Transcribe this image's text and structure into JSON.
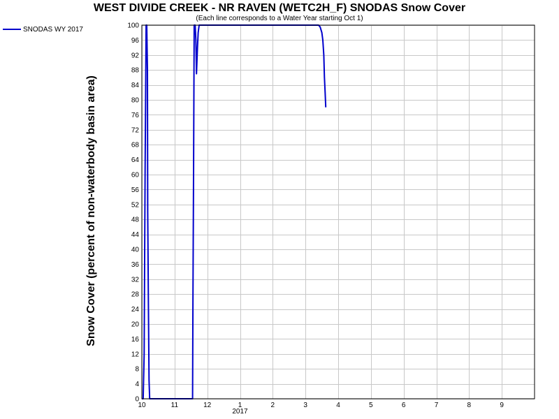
{
  "chart_data": {
    "type": "line",
    "title": "WEST DIVIDE CREEK - NR RAVEN (WETC2H_F) SNODAS Snow Cover",
    "subtitle": "(Each line corresponds to a Water Year starting Oct 1)",
    "ylabel": "Snow Cover (percent of non-waterbody basin area)",
    "xlabel": "",
    "ylim": [
      0,
      100
    ],
    "yticks": [
      0,
      4,
      8,
      12,
      16,
      20,
      24,
      28,
      32,
      36,
      40,
      44,
      48,
      52,
      56,
      60,
      64,
      68,
      72,
      76,
      80,
      84,
      88,
      92,
      96,
      100
    ],
    "xlim": [
      0,
      12
    ],
    "xticks": [
      {
        "pos": 0,
        "label": "10"
      },
      {
        "pos": 1,
        "label": "11"
      },
      {
        "pos": 2,
        "label": "12"
      },
      {
        "pos": 3,
        "label": "1"
      },
      {
        "pos": 4,
        "label": "2"
      },
      {
        "pos": 5,
        "label": "3"
      },
      {
        "pos": 6,
        "label": "4"
      },
      {
        "pos": 7,
        "label": "5"
      },
      {
        "pos": 8,
        "label": "6"
      },
      {
        "pos": 9,
        "label": "7"
      },
      {
        "pos": 10,
        "label": "8"
      },
      {
        "pos": 11,
        "label": "9"
      }
    ],
    "year_label": {
      "pos": 3,
      "label": "2017"
    },
    "grid": true,
    "legend_position": "top-left",
    "series": [
      {
        "name": "SNODAS WY 2017",
        "color": "#0000cc",
        "points": [
          [
            0.0,
            0
          ],
          [
            0.04,
            0
          ],
          [
            0.07,
            12
          ],
          [
            0.1,
            62
          ],
          [
            0.13,
            100
          ],
          [
            0.15,
            100
          ],
          [
            0.17,
            88
          ],
          [
            0.18,
            50
          ],
          [
            0.2,
            25
          ],
          [
            0.22,
            5
          ],
          [
            0.24,
            0
          ],
          [
            1.55,
            0
          ],
          [
            1.56,
            25
          ],
          [
            1.58,
            60
          ],
          [
            1.6,
            100
          ],
          [
            1.63,
            100
          ],
          [
            1.65,
            96
          ],
          [
            1.67,
            87
          ],
          [
            1.7,
            94
          ],
          [
            1.72,
            98
          ],
          [
            1.75,
            100
          ],
          [
            1.8,
            100
          ],
          [
            5.4,
            100
          ],
          [
            5.45,
            99.5
          ],
          [
            5.5,
            98
          ],
          [
            5.53,
            96
          ],
          [
            5.56,
            92
          ],
          [
            5.58,
            86
          ],
          [
            5.6,
            82
          ],
          [
            5.62,
            78
          ]
        ]
      }
    ]
  }
}
